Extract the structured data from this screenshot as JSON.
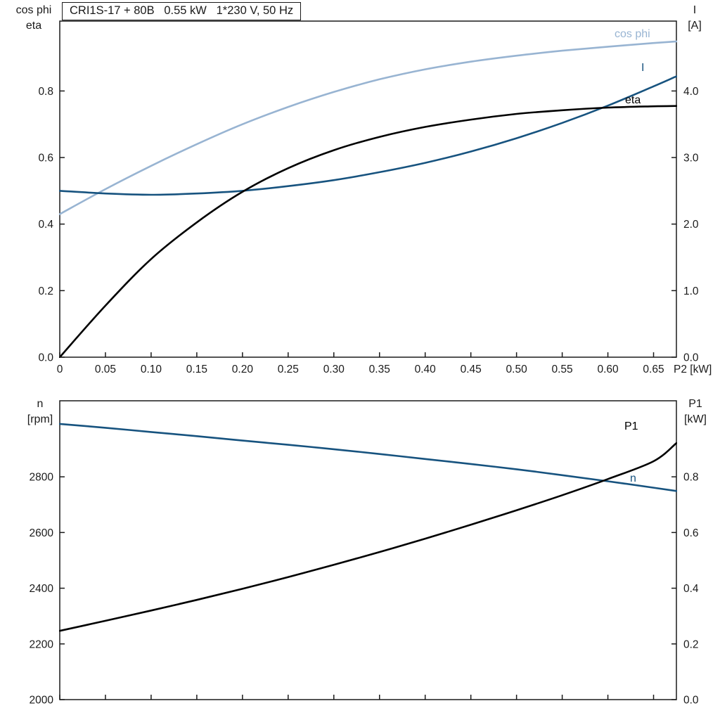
{
  "title_box": {
    "text": "CRI1S-17 + 80B   0.55 kW   1*230 V, 50 Hz"
  },
  "colors": {
    "frame": "#1a1a1a",
    "light_blue": "#98b4d2",
    "dark_blue": "#17537f",
    "black": "#000000"
  },
  "chart_data": [
    {
      "type": "line",
      "title": "Motor electrical curves vs shaft power P2",
      "x": [
        0,
        0.05,
        0.1,
        0.15,
        0.2,
        0.25,
        0.3,
        0.35,
        0.4,
        0.45,
        0.5,
        0.55,
        0.6,
        0.65,
        0.675
      ],
      "x_axis": {
        "label": "P2 [kW]",
        "min": 0,
        "max": 0.675,
        "ticks": [
          0,
          0.05,
          0.1,
          0.15,
          0.2,
          0.25,
          0.3,
          0.35,
          0.4,
          0.45,
          0.5,
          0.55,
          0.6,
          0.65
        ],
        "tick_labels": [
          "0",
          "0.05",
          "0.10",
          "0.15",
          "0.20",
          "0.25",
          "0.30",
          "0.35",
          "0.40",
          "0.45",
          "0.50",
          "0.55",
          "0.60",
          "0.65"
        ]
      },
      "left_axis": {
        "title_line1": "cos phi",
        "title_line2": "eta",
        "min": 0,
        "max": 1.01,
        "ticks": [
          0,
          0.2,
          0.4,
          0.6,
          0.8
        ],
        "tick_labels": [
          "0.0",
          "0.2",
          "0.4",
          "0.6",
          "0.8"
        ]
      },
      "right_axis": {
        "title_line1": "I",
        "title_line2": "[A]",
        "min": 0,
        "max": 5.05,
        "ticks": [
          0,
          1.0,
          2.0,
          3.0,
          4.0
        ],
        "tick_labels": [
          "0.0",
          "1.0",
          "2.0",
          "3.0",
          "4.0"
        ]
      },
      "legend_position": "inline-right",
      "grid": false,
      "series": [
        {
          "id": "cos-phi",
          "name": "cos phi",
          "axis": "left",
          "color": "#98b4d2",
          "values": [
            0.43,
            0.505,
            0.575,
            0.64,
            0.7,
            0.752,
            0.797,
            0.835,
            0.865,
            0.888,
            0.906,
            0.921,
            0.933,
            0.944,
            0.949
          ]
        },
        {
          "id": "current",
          "name": "I",
          "axis": "right",
          "color": "#17537f",
          "values": [
            2.5,
            2.46,
            2.44,
            2.46,
            2.5,
            2.57,
            2.66,
            2.78,
            2.92,
            3.09,
            3.29,
            3.52,
            3.78,
            4.07,
            4.22
          ]
        },
        {
          "id": "eta",
          "name": "eta",
          "axis": "left",
          "color": "#000000",
          "values": [
            0.0,
            0.155,
            0.295,
            0.405,
            0.497,
            0.568,
            0.622,
            0.662,
            0.692,
            0.714,
            0.731,
            0.742,
            0.75,
            0.754,
            0.755
          ]
        }
      ]
    },
    {
      "type": "line",
      "title": "Speed and input power vs shaft power P2",
      "x": [
        0,
        0.05,
        0.1,
        0.15,
        0.2,
        0.25,
        0.3,
        0.35,
        0.4,
        0.45,
        0.5,
        0.55,
        0.6,
        0.65,
        0.675
      ],
      "x_axis": {
        "label": "",
        "min": 0,
        "max": 0.675,
        "ticks": [
          0,
          0.05,
          0.1,
          0.15,
          0.2,
          0.25,
          0.3,
          0.35,
          0.4,
          0.45,
          0.5,
          0.55,
          0.6,
          0.65
        ],
        "tick_labels": []
      },
      "left_axis": {
        "title_line1": "n",
        "title_line2": "[rpm]",
        "min": 2000,
        "max": 3073,
        "ticks": [
          2000,
          2200,
          2400,
          2600,
          2800
        ],
        "tick_labels": [
          "2000",
          "2200",
          "2400",
          "2600",
          "2800"
        ]
      },
      "right_axis": {
        "title_line1": "P1",
        "title_line2": "[kW]",
        "min": 0,
        "max": 1.073,
        "ticks": [
          0,
          0.2,
          0.4,
          0.6,
          0.8
        ],
        "tick_labels": [
          "0.0",
          "0.2",
          "0.4",
          "0.6",
          "0.8"
        ]
      },
      "legend_position": "inline-right",
      "grid": false,
      "series": [
        {
          "id": "speed",
          "name": "n",
          "axis": "left",
          "color": "#17537f",
          "values": [
            2990,
            2976,
            2961,
            2946,
            2930,
            2915,
            2899,
            2882,
            2864,
            2846,
            2827,
            2806,
            2784,
            2761,
            2749
          ]
        },
        {
          "id": "input-power",
          "name": "P1",
          "axis": "right",
          "color": "#000000",
          "values": [
            0.247,
            0.283,
            0.32,
            0.358,
            0.398,
            0.44,
            0.484,
            0.53,
            0.578,
            0.628,
            0.68,
            0.734,
            0.792,
            0.856,
            0.921
          ]
        }
      ]
    }
  ]
}
